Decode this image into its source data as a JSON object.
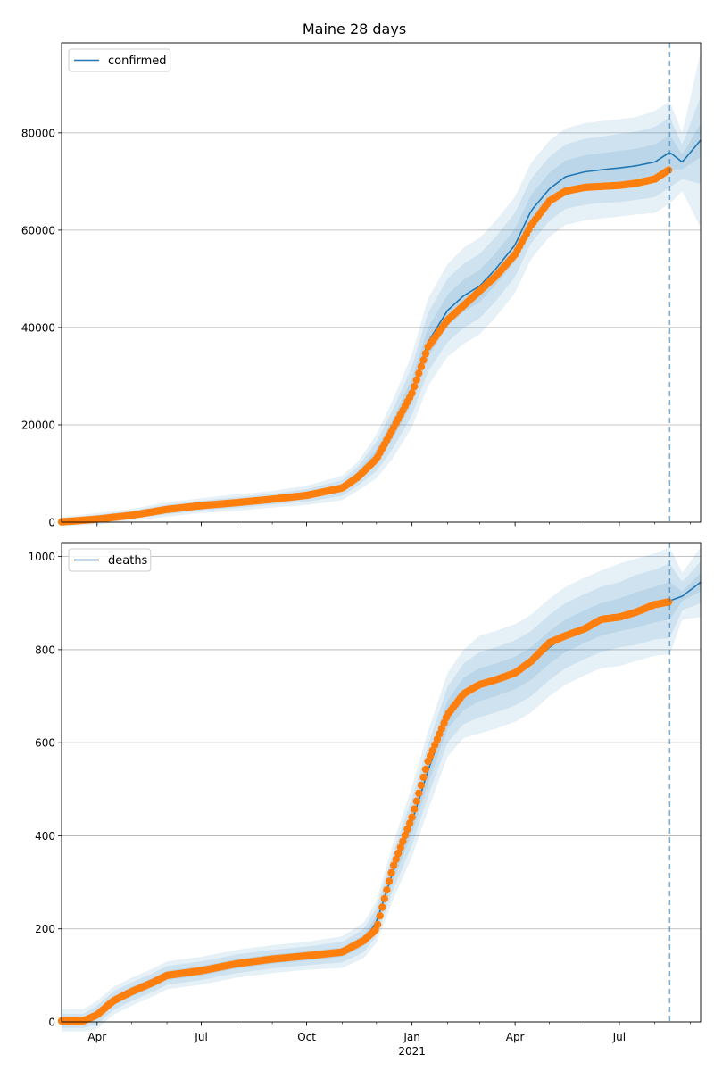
{
  "figure": {
    "title": "Maine 28 days"
  },
  "colors": {
    "model": "#1f77b4",
    "observed": "#ff7f0e",
    "grid": "#b0b0b0",
    "band": "#1f77b4"
  },
  "chart_data": [
    {
      "type": "line",
      "panel": "top",
      "title": "Maine 28 days",
      "xlabel": "",
      "ylabel": "",
      "xlim": [
        "2020-03-01",
        "2021-09-10"
      ],
      "ylim": [
        0,
        98500
      ],
      "yticks": [
        0,
        20000,
        40000,
        60000,
        80000
      ],
      "grid": "y",
      "legend": {
        "position": "top-left",
        "entries": [
          "confirmed"
        ]
      },
      "forecast_start": "2021-08-14",
      "model": {
        "name": "confirmed",
        "x": [
          "2020-03-01",
          "2020-04-01",
          "2020-05-01",
          "2020-06-01",
          "2020-07-01",
          "2020-08-01",
          "2020-09-01",
          "2020-10-01",
          "2020-11-01",
          "2020-11-15",
          "2020-12-01",
          "2020-12-15",
          "2021-01-01",
          "2021-01-15",
          "2021-02-01",
          "2021-02-15",
          "2021-03-01",
          "2021-03-15",
          "2021-04-01",
          "2021-04-15",
          "2021-05-01",
          "2021-05-15",
          "2021-06-01",
          "2021-06-15",
          "2021-07-01",
          "2021-07-15",
          "2021-08-01",
          "2021-08-14",
          "2021-08-25",
          "2021-09-10"
        ],
        "y": [
          100,
          700,
          1500,
          2600,
          3400,
          4000,
          4700,
          5500,
          7000,
          9500,
          13500,
          19000,
          27000,
          37000,
          43500,
          46500,
          48500,
          52000,
          57000,
          64000,
          68500,
          71000,
          72000,
          72400,
          72800,
          73200,
          74000,
          76000,
          74000,
          78500
        ],
        "band_halfwidths": [
          [
            300,
            600,
            900
          ],
          [
            400,
            800,
            1200
          ],
          [
            400,
            800,
            1200
          ],
          [
            500,
            1000,
            1500
          ],
          [
            500,
            1000,
            1500
          ],
          [
            600,
            1100,
            1700
          ],
          [
            600,
            1100,
            1700
          ],
          [
            700,
            1300,
            2000
          ],
          [
            800,
            1600,
            2500
          ],
          [
            1000,
            2000,
            3000
          ],
          [
            1500,
            3000,
            4500
          ],
          [
            2000,
            4000,
            6000
          ],
          [
            2500,
            5000,
            7500
          ],
          [
            3000,
            6000,
            9000
          ],
          [
            3200,
            6500,
            9500
          ],
          [
            3300,
            6600,
            9900
          ],
          [
            3300,
            6600,
            9900
          ],
          [
            3300,
            6600,
            9900
          ],
          [
            3300,
            6600,
            9900
          ],
          [
            3300,
            6600,
            9900
          ],
          [
            3300,
            6600,
            9900
          ],
          [
            3300,
            6600,
            9900
          ],
          [
            3400,
            6800,
            10000
          ],
          [
            3400,
            6800,
            10000
          ],
          [
            3500,
            7000,
            10000
          ],
          [
            3500,
            7000,
            10000
          ],
          [
            3600,
            7200,
            10500
          ],
          [
            3600,
            7200,
            10500
          ],
          [
            1500,
            3500,
            6000
          ],
          [
            3500,
            9000,
            18000
          ]
        ]
      },
      "observed": {
        "name": "observed",
        "x": [
          "2020-03-01",
          "2020-04-01",
          "2020-05-01",
          "2020-06-01",
          "2020-07-01",
          "2020-08-01",
          "2020-09-01",
          "2020-10-01",
          "2020-11-01",
          "2020-11-15",
          "2020-12-01",
          "2020-12-15",
          "2021-01-01",
          "2021-01-15",
          "2021-02-01",
          "2021-02-15",
          "2021-03-01",
          "2021-03-15",
          "2021-04-01",
          "2021-04-15",
          "2021-05-01",
          "2021-05-15",
          "2021-06-01",
          "2021-06-15",
          "2021-07-01",
          "2021-07-15",
          "2021-08-01",
          "2021-08-14"
        ],
        "y": [
          50,
          600,
          1400,
          2600,
          3400,
          4000,
          4700,
          5500,
          7000,
          9300,
          13000,
          19000,
          26500,
          36000,
          41500,
          44500,
          47500,
          50500,
          55000,
          61000,
          66000,
          68000,
          68800,
          69000,
          69200,
          69600,
          70500,
          72500
        ]
      }
    },
    {
      "type": "line",
      "panel": "bottom",
      "xlabel": "",
      "ylabel": "",
      "xlim": [
        "2020-03-01",
        "2021-09-10"
      ],
      "ylim": [
        0,
        1030
      ],
      "yticks": [
        0,
        200,
        400,
        600,
        800,
        1000
      ],
      "xticks": [
        "Apr",
        "Jul",
        "Oct",
        "Jan",
        "Apr",
        "Jul"
      ],
      "xtick_dates": [
        "2020-04-01",
        "2020-07-01",
        "2020-10-01",
        "2021-01-01",
        "2021-04-01",
        "2021-07-01"
      ],
      "xaxis_year_label": "2021",
      "grid": "y",
      "legend": {
        "position": "top-left",
        "entries": [
          "deaths"
        ]
      },
      "forecast_start": "2021-08-14",
      "model": {
        "name": "deaths",
        "x": [
          "2020-03-01",
          "2020-03-20",
          "2020-04-01",
          "2020-04-15",
          "2020-05-01",
          "2020-05-20",
          "2020-06-01",
          "2020-07-01",
          "2020-08-01",
          "2020-09-01",
          "2020-10-01",
          "2020-11-01",
          "2020-11-20",
          "2020-12-01",
          "2020-12-15",
          "2021-01-01",
          "2021-01-15",
          "2021-02-01",
          "2021-02-15",
          "2021-03-01",
          "2021-03-15",
          "2021-04-01",
          "2021-04-15",
          "2021-05-01",
          "2021-05-15",
          "2021-06-01",
          "2021-06-15",
          "2021-07-01",
          "2021-07-15",
          "2021-08-01",
          "2021-08-14",
          "2021-08-25",
          "2021-09-10"
        ],
        "y": [
          2,
          2,
          15,
          45,
          65,
          85,
          100,
          110,
          125,
          135,
          142,
          150,
          175,
          215,
          320,
          430,
          540,
          660,
          705,
          725,
          735,
          750,
          770,
          805,
          830,
          850,
          865,
          875,
          885,
          897,
          905,
          915,
          945
        ],
        "band_halfwidths": [
          [
            8,
            15,
            25
          ],
          [
            8,
            15,
            25
          ],
          [
            10,
            20,
            30
          ],
          [
            10,
            20,
            30
          ],
          [
            10,
            20,
            30
          ],
          [
            10,
            20,
            30
          ],
          [
            10,
            20,
            30
          ],
          [
            10,
            20,
            30
          ],
          [
            10,
            20,
            30
          ],
          [
            10,
            20,
            30
          ],
          [
            10,
            20,
            30
          ],
          [
            10,
            22,
            34
          ],
          [
            12,
            25,
            38
          ],
          [
            15,
            30,
            45
          ],
          [
            20,
            40,
            60
          ],
          [
            25,
            50,
            75
          ],
          [
            28,
            55,
            85
          ],
          [
            30,
            60,
            90
          ],
          [
            35,
            65,
            95
          ],
          [
            35,
            70,
            105
          ],
          [
            35,
            70,
            105
          ],
          [
            35,
            70,
            105
          ],
          [
            35,
            70,
            105
          ],
          [
            35,
            70,
            105
          ],
          [
            35,
            70,
            105
          ],
          [
            35,
            70,
            105
          ],
          [
            35,
            70,
            105
          ],
          [
            35,
            70,
            110
          ],
          [
            38,
            75,
            110
          ],
          [
            38,
            75,
            110
          ],
          [
            40,
            80,
            115
          ],
          [
            10,
            30,
            50
          ],
          [
            20,
            45,
            75
          ]
        ]
      },
      "observed": {
        "name": "observed",
        "x": [
          "2020-03-01",
          "2020-03-20",
          "2020-04-01",
          "2020-04-15",
          "2020-05-01",
          "2020-05-20",
          "2020-06-01",
          "2020-07-01",
          "2020-08-01",
          "2020-09-01",
          "2020-10-01",
          "2020-11-01",
          "2020-11-20",
          "2020-12-01",
          "2020-12-15",
          "2021-01-01",
          "2021-01-15",
          "2021-02-01",
          "2021-02-15",
          "2021-03-01",
          "2021-03-15",
          "2021-04-01",
          "2021-04-15",
          "2021-05-01",
          "2021-05-15",
          "2021-06-01",
          "2021-06-15",
          "2021-07-01",
          "2021-07-15",
          "2021-08-01",
          "2021-08-14"
        ],
        "y": [
          2,
          2,
          15,
          45,
          65,
          85,
          100,
          110,
          125,
          135,
          142,
          150,
          175,
          200,
          330,
          440,
          560,
          660,
          705,
          725,
          735,
          750,
          775,
          815,
          830,
          845,
          865,
          870,
          880,
          897,
          903
        ]
      }
    }
  ]
}
